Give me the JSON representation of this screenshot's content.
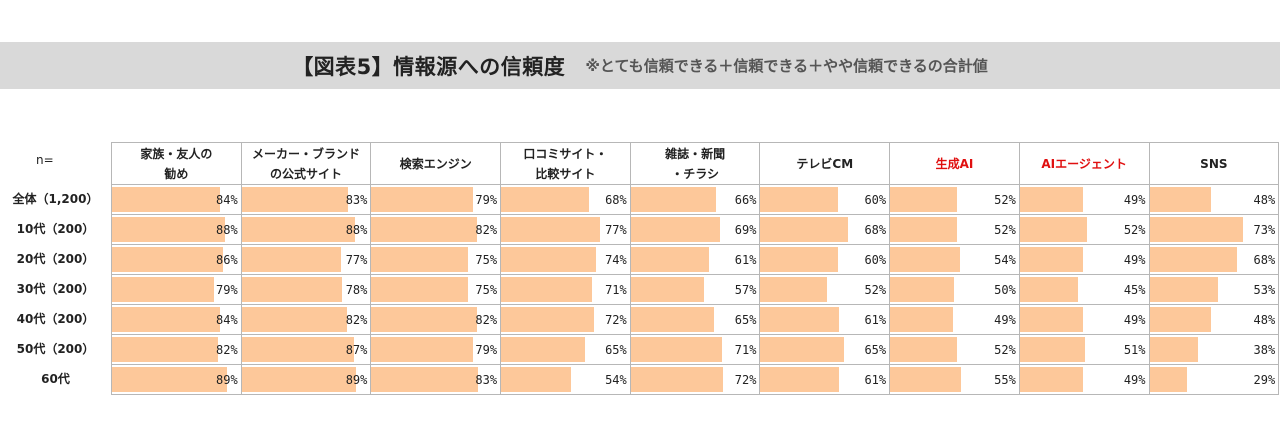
{
  "title": "【図表5】情報源への信頼度",
  "subtitle": "※とても信頼できる＋信頼できる＋やや信頼できるの合計値",
  "n_label": "n=",
  "colors": {
    "bar": "#fdc89a",
    "header_red": "#e01010",
    "band": "#d9d9d9"
  },
  "chart_data": {
    "type": "table",
    "title": "【図表5】情報源への信頼度",
    "subtitle": "※とても信頼できる＋信頼できる＋やや信頼できるの合計値",
    "unit": "%",
    "columns": [
      {
        "label": "家族・友人の\n勧め",
        "highlight": false
      },
      {
        "label": "メーカー・ブランド\nの公式サイト",
        "highlight": false
      },
      {
        "label": "検索エンジン",
        "highlight": false
      },
      {
        "label": "口コミサイト・\n比較サイト",
        "highlight": false
      },
      {
        "label": "雑誌・新聞\n・チラシ",
        "highlight": false
      },
      {
        "label": "テレビCM",
        "highlight": false
      },
      {
        "label": "生成AI",
        "highlight": true
      },
      {
        "label": "AIエージェント",
        "highlight": true
      },
      {
        "label": "SNS",
        "highlight": false
      }
    ],
    "rows": [
      {
        "label": "全体（1,200）",
        "values": [
          84,
          83,
          79,
          68,
          66,
          60,
          52,
          49,
          48
        ]
      },
      {
        "label": "10代（200）",
        "values": [
          88,
          88,
          82,
          77,
          69,
          68,
          52,
          52,
          73
        ]
      },
      {
        "label": "20代（200）",
        "values": [
          86,
          77,
          75,
          74,
          61,
          60,
          54,
          49,
          68
        ]
      },
      {
        "label": "30代（200）",
        "values": [
          79,
          78,
          75,
          71,
          57,
          52,
          50,
          45,
          53
        ]
      },
      {
        "label": "40代（200）",
        "values": [
          84,
          82,
          82,
          72,
          65,
          61,
          49,
          49,
          48
        ]
      },
      {
        "label": "50代（200）",
        "values": [
          82,
          87,
          79,
          65,
          71,
          65,
          52,
          51,
          38
        ]
      },
      {
        "label": "60代",
        "values": [
          89,
          89,
          83,
          54,
          72,
          61,
          55,
          49,
          29
        ]
      }
    ]
  }
}
